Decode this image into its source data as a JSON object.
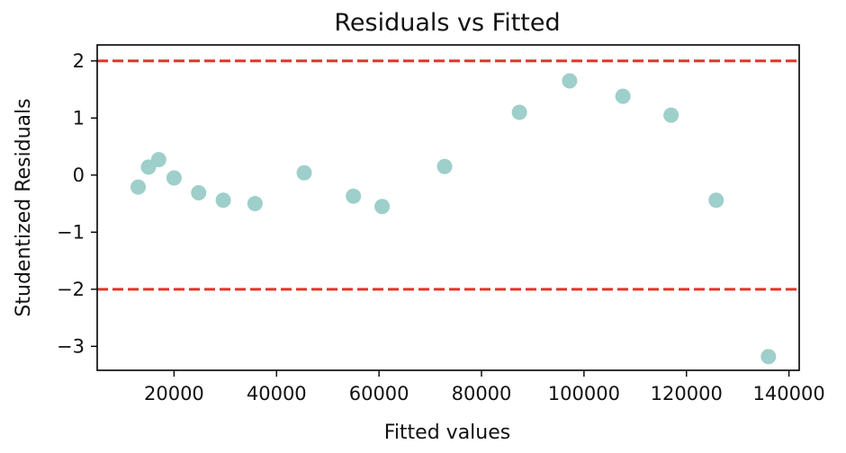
{
  "chart_data": {
    "type": "scatter",
    "title": "Residuals vs Fitted",
    "xlabel": "Fitted values",
    "ylabel": "Studentized Residuals",
    "xlim": [
      5000,
      142000
    ],
    "ylim": [
      -3.42,
      2.28
    ],
    "xticks": [
      20000,
      40000,
      60000,
      80000,
      100000,
      120000,
      140000
    ],
    "xtick_labels": [
      "20000",
      "40000",
      "60000",
      "80000",
      "100000",
      "120000",
      "140000"
    ],
    "yticks": [
      2,
      1,
      0,
      -1,
      -2,
      -3
    ],
    "ytick_labels": [
      "2",
      "1",
      "0",
      "−1",
      "−2",
      "−3"
    ],
    "grid": false,
    "reference_lines": [
      {
        "y": 2,
        "style": "dashed",
        "color": "#e0352b"
      },
      {
        "y": -2,
        "style": "dashed",
        "color": "#e0352b"
      }
    ],
    "point_color": "#9ecfca",
    "points": [
      {
        "x": 13000,
        "y": -0.21
      },
      {
        "x": 15000,
        "y": 0.14
      },
      {
        "x": 17000,
        "y": 0.27
      },
      {
        "x": 20000,
        "y": -0.05
      },
      {
        "x": 24800,
        "y": -0.31
      },
      {
        "x": 29600,
        "y": -0.44
      },
      {
        "x": 35800,
        "y": -0.5
      },
      {
        "x": 45400,
        "y": 0.04
      },
      {
        "x": 55000,
        "y": -0.37
      },
      {
        "x": 60600,
        "y": -0.55
      },
      {
        "x": 72800,
        "y": 0.15
      },
      {
        "x": 87400,
        "y": 1.1
      },
      {
        "x": 97200,
        "y": 1.65
      },
      {
        "x": 107600,
        "y": 1.38
      },
      {
        "x": 117000,
        "y": 1.05
      },
      {
        "x": 125800,
        "y": -0.44
      },
      {
        "x": 136000,
        "y": -3.18
      }
    ]
  }
}
